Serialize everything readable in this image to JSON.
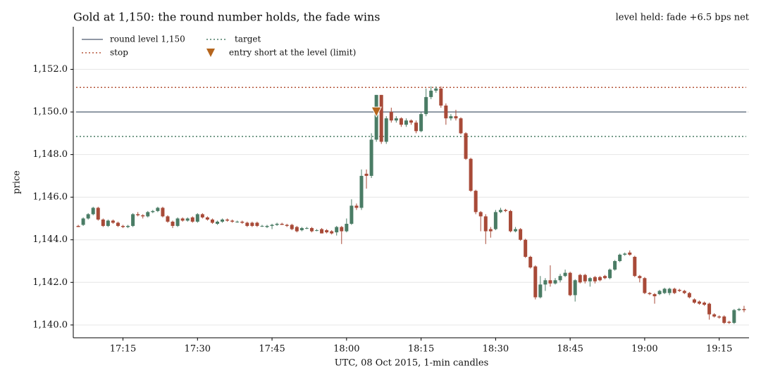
{
  "chart_data": {
    "type": "candlestick",
    "title": "Gold at 1,150: the round number holds, the fade wins",
    "annotation": "level held: fade +6.5 bps net",
    "annotation_color": "#b5651d",
    "xlabel": "UTC, 08 Oct 2015, 1-min candles",
    "ylabel": "price",
    "up_color": "#4a7c65",
    "down_color": "#a84a38",
    "x": [
      "17:06",
      "17:07",
      "17:08",
      "17:09",
      "17:10",
      "17:11",
      "17:12",
      "17:13",
      "17:14",
      "17:15",
      "17:16",
      "17:17",
      "17:18",
      "17:19",
      "17:20",
      "17:21",
      "17:22",
      "17:23",
      "17:24",
      "17:25",
      "17:26",
      "17:27",
      "17:28",
      "17:29",
      "17:30",
      "17:31",
      "17:32",
      "17:33",
      "17:34",
      "17:35",
      "17:36",
      "17:37",
      "17:38",
      "17:39",
      "17:40",
      "17:41",
      "17:42",
      "17:43",
      "17:44",
      "17:45",
      "17:46",
      "17:47",
      "17:48",
      "17:49",
      "17:50",
      "17:51",
      "17:52",
      "17:53",
      "17:54",
      "17:55",
      "17:56",
      "17:57",
      "17:58",
      "17:59",
      "18:00",
      "18:01",
      "18:02",
      "18:03",
      "18:04",
      "18:05",
      "18:06",
      "18:07",
      "18:08",
      "18:09",
      "18:10",
      "18:11",
      "18:12",
      "18:13",
      "18:14",
      "18:15",
      "18:16",
      "18:17",
      "18:18",
      "18:19",
      "18:20",
      "18:21",
      "18:22",
      "18:23",
      "18:24",
      "18:25",
      "18:26",
      "18:27",
      "18:28",
      "18:29",
      "18:30",
      "18:31",
      "18:32",
      "18:33",
      "18:34",
      "18:35",
      "18:36",
      "18:37",
      "18:38",
      "18:39",
      "18:40",
      "18:41",
      "18:42",
      "18:43",
      "18:44",
      "18:45",
      "18:46",
      "18:47",
      "18:48",
      "18:49",
      "18:50",
      "18:51",
      "18:52",
      "18:53",
      "18:54",
      "18:55",
      "18:56",
      "18:57",
      "18:58",
      "18:59",
      "19:00",
      "19:01",
      "19:02",
      "19:03",
      "19:04",
      "19:05",
      "19:06",
      "19:07",
      "19:08",
      "19:09",
      "19:10",
      "19:11",
      "19:12",
      "19:13",
      "19:14",
      "19:15",
      "19:16",
      "19:17",
      "19:18",
      "19:19",
      "19:20"
    ],
    "open": [
      1144.65,
      1144.7,
      1145.0,
      1145.2,
      1145.5,
      1144.95,
      1144.65,
      1144.9,
      1144.8,
      1144.65,
      1144.6,
      1144.65,
      1145.2,
      1145.15,
      1145.1,
      1145.3,
      1145.35,
      1145.5,
      1145.1,
      1144.85,
      1144.65,
      1145.0,
      1144.9,
      1145.05,
      1144.85,
      1145.2,
      1145.05,
      1144.95,
      1144.75,
      1144.85,
      1144.95,
      1144.9,
      1144.85,
      1144.85,
      1144.8,
      1144.8,
      1144.8,
      1144.65,
      1144.6,
      1144.65,
      1144.7,
      1144.75,
      1144.7,
      1144.7,
      1144.6,
      1144.45,
      1144.55,
      1144.55,
      1144.45,
      1144.5,
      1144.45,
      1144.4,
      1144.35,
      1144.6,
      1144.4,
      1144.75,
      1145.6,
      1145.5,
      1147.1,
      1147.0,
      1148.7,
      1150.8,
      1148.6,
      1150.0,
      1149.6,
      1149.7,
      1149.4,
      1149.6,
      1149.5,
      1149.1,
      1149.9,
      1150.7,
      1151.0,
      1151.1,
      1150.3,
      1149.7,
      1149.8,
      1149.7,
      1149.0,
      1147.8,
      1146.3,
      1145.3,
      1145.1,
      1144.5,
      1144.5,
      1145.3,
      1145.4,
      1145.35,
      1144.4,
      1144.5,
      1144.0,
      1143.2,
      1142.75,
      1141.3,
      1141.9,
      1142.1,
      1141.95,
      1142.1,
      1142.3,
      1142.45,
      1141.4,
      1142.35,
      1142.35,
      1142.05,
      1142.25,
      1142.25,
      1142.3,
      1142.2,
      1142.6,
      1143.0,
      1143.3,
      1143.4,
      1143.2,
      1142.3,
      1142.2,
      1141.5,
      1141.45,
      1141.45,
      1141.5,
      1141.5,
      1141.7,
      1141.65,
      1141.6,
      1141.5,
      1141.2,
      1141.1,
      1141.05,
      1141.0,
      1140.5,
      1140.4,
      1140.4,
      1140.15,
      1140.1,
      1140.7,
      1140.75
    ],
    "high": [
      1144.7,
      1145.05,
      1145.25,
      1145.55,
      1145.55,
      1145.0,
      1144.95,
      1144.95,
      1144.85,
      1144.7,
      1144.7,
      1145.25,
      1145.3,
      1145.2,
      1145.35,
      1145.4,
      1145.55,
      1145.55,
      1145.15,
      1144.9,
      1145.05,
      1145.05,
      1145.05,
      1145.1,
      1145.25,
      1145.25,
      1145.1,
      1145.0,
      1144.9,
      1145.0,
      1145.0,
      1144.95,
      1144.9,
      1144.9,
      1144.85,
      1144.85,
      1144.85,
      1144.7,
      1144.7,
      1144.75,
      1144.8,
      1144.8,
      1144.75,
      1144.75,
      1144.65,
      1144.6,
      1144.6,
      1144.6,
      1144.5,
      1144.55,
      1144.5,
      1144.45,
      1144.65,
      1144.65,
      1145.0,
      1145.9,
      1145.7,
      1147.3,
      1147.3,
      1149.0,
      1150.8,
      1150.8,
      1149.8,
      1150.2,
      1149.8,
      1149.75,
      1149.7,
      1149.65,
      1149.6,
      1150.0,
      1151.1,
      1151.2,
      1151.2,
      1151.2,
      1150.4,
      1149.9,
      1150.1,
      1149.75,
      1149.05,
      1147.85,
      1146.35,
      1145.35,
      1145.2,
      1144.6,
      1145.4,
      1145.5,
      1145.45,
      1145.4,
      1144.6,
      1144.55,
      1144.05,
      1143.25,
      1142.8,
      1142.3,
      1142.2,
      1142.8,
      1142.2,
      1142.4,
      1142.6,
      1142.5,
      1142.15,
      1142.4,
      1142.4,
      1142.25,
      1142.3,
      1142.3,
      1142.35,
      1142.65,
      1143.05,
      1143.35,
      1143.4,
      1143.5,
      1143.25,
      1142.35,
      1142.25,
      1141.55,
      1141.5,
      1141.65,
      1141.75,
      1141.75,
      1141.75,
      1141.7,
      1141.65,
      1141.55,
      1141.25,
      1141.15,
      1141.1,
      1141.05,
      1140.55,
      1140.45,
      1140.45,
      1140.2,
      1140.75,
      1140.8,
      1140.9
    ],
    "low": [
      1144.6,
      1144.65,
      1144.95,
      1145.15,
      1144.9,
      1144.6,
      1144.6,
      1144.75,
      1144.6,
      1144.55,
      1144.55,
      1144.6,
      1145.1,
      1145.0,
      1145.05,
      1145.25,
      1145.3,
      1145.05,
      1144.8,
      1144.55,
      1144.6,
      1144.85,
      1144.85,
      1144.8,
      1144.8,
      1145.0,
      1144.9,
      1144.75,
      1144.7,
      1144.8,
      1144.85,
      1144.8,
      1144.8,
      1144.75,
      1144.6,
      1144.6,
      1144.6,
      1144.6,
      1144.55,
      1144.5,
      1144.65,
      1144.7,
      1144.6,
      1144.45,
      1144.35,
      1144.4,
      1144.5,
      1144.35,
      1144.4,
      1144.3,
      1144.3,
      1144.25,
      1144.2,
      1143.8,
      1144.35,
      1144.7,
      1145.4,
      1145.4,
      1146.4,
      1146.9,
      1148.6,
      1148.5,
      1148.5,
      1149.5,
      1149.5,
      1149.3,
      1149.3,
      1149.4,
      1149.0,
      1149.05,
      1149.8,
      1150.6,
      1150.9,
      1150.2,
      1149.4,
      1149.6,
      1149.6,
      1148.95,
      1147.75,
      1146.25,
      1145.2,
      1144.4,
      1143.8,
      1144.1,
      1144.45,
      1145.25,
      1145.3,
      1144.35,
      1144.35,
      1143.95,
      1143.15,
      1142.65,
      1141.2,
      1141.25,
      1141.6,
      1141.8,
      1141.9,
      1142.0,
      1142.25,
      1141.35,
      1141.1,
      1141.95,
      1141.95,
      1141.8,
      1141.95,
      1142.05,
      1142.15,
      1142.15,
      1142.55,
      1142.95,
      1143.25,
      1143.25,
      1142.25,
      1142.0,
      1141.45,
      1141.4,
      1141.0,
      1141.4,
      1141.45,
      1141.4,
      1141.45,
      1141.55,
      1141.45,
      1141.25,
      1141.0,
      1140.95,
      1140.9,
      1140.25,
      1140.35,
      1140.3,
      1140.05,
      1140.05,
      1140.05,
      1140.65,
      1140.6
    ],
    "close": [
      1144.6,
      1145.0,
      1145.2,
      1145.5,
      1144.95,
      1144.65,
      1144.9,
      1144.8,
      1144.65,
      1144.6,
      1144.65,
      1145.2,
      1145.15,
      1145.1,
      1145.3,
      1145.35,
      1145.5,
      1145.1,
      1144.85,
      1144.65,
      1145.0,
      1144.9,
      1145.0,
      1144.85,
      1145.2,
      1145.05,
      1144.95,
      1144.8,
      1144.85,
      1144.95,
      1144.9,
      1144.85,
      1144.85,
      1144.8,
      1144.65,
      1144.65,
      1144.65,
      1144.65,
      1144.65,
      1144.7,
      1144.75,
      1144.7,
      1144.65,
      1144.5,
      1144.4,
      1144.55,
      1144.55,
      1144.4,
      1144.45,
      1144.3,
      1144.35,
      1144.3,
      1144.6,
      1144.4,
      1144.75,
      1145.6,
      1145.5,
      1147.0,
      1147.0,
      1148.7,
      1150.8,
      1148.6,
      1149.7,
      1149.6,
      1149.7,
      1149.4,
      1149.6,
      1149.5,
      1149.1,
      1149.9,
      1150.7,
      1151.0,
      1151.1,
      1150.3,
      1149.7,
      1149.8,
      1149.7,
      1149.0,
      1147.8,
      1146.3,
      1145.3,
      1145.1,
      1144.4,
      1144.4,
      1145.3,
      1145.4,
      1145.35,
      1144.4,
      1144.5,
      1144.0,
      1143.2,
      1142.7,
      1141.3,
      1141.9,
      1142.1,
      1141.95,
      1142.1,
      1142.3,
      1142.45,
      1141.4,
      1142.1,
      1142.0,
      1142.05,
      1142.2,
      1142.05,
      1142.1,
      1142.2,
      1142.6,
      1143.0,
      1143.3,
      1143.35,
      1143.3,
      1142.3,
      1142.2,
      1141.5,
      1141.45,
      1141.35,
      1141.6,
      1141.7,
      1141.7,
      1141.5,
      1141.6,
      1141.5,
      1141.3,
      1141.05,
      1141.0,
      1140.95,
      1140.5,
      1140.4,
      1140.35,
      1140.1,
      1140.1,
      1140.7,
      1140.75,
      1140.7
    ],
    "levels": [
      {
        "name": "round level 1,150",
        "value": 1150,
        "color": "#6b7787",
        "style": "solid"
      },
      {
        "name": "stop",
        "value": 1151.15,
        "color": "#b5553a",
        "style": "dotted"
      },
      {
        "name": "target",
        "value": 1148.85,
        "color": "#4a7c65",
        "style": "dotted"
      }
    ],
    "markers": [
      {
        "name": "entry short at the level (limit)",
        "x": "18:06",
        "value": 1150,
        "color": "#b5651d"
      }
    ],
    "xlim": [
      "17:05",
      "19:21"
    ],
    "xticks": [
      "17:15",
      "17:30",
      "17:45",
      "18:00",
      "18:15",
      "18:30",
      "18:45",
      "19:00",
      "19:15"
    ],
    "ylim": [
      1139.4,
      1154.0
    ],
    "yticks": [
      {
        "value": 1140,
        "label": "1,140.0"
      },
      {
        "value": 1142,
        "label": "1,142.0"
      },
      {
        "value": 1144,
        "label": "1,144.0"
      },
      {
        "value": 1146,
        "label": "1,146.0"
      },
      {
        "value": 1148,
        "label": "1,148.0"
      },
      {
        "value": 1150,
        "label": "1,150.0"
      },
      {
        "value": 1152,
        "label": "1,152.0"
      }
    ],
    "grid": true
  }
}
